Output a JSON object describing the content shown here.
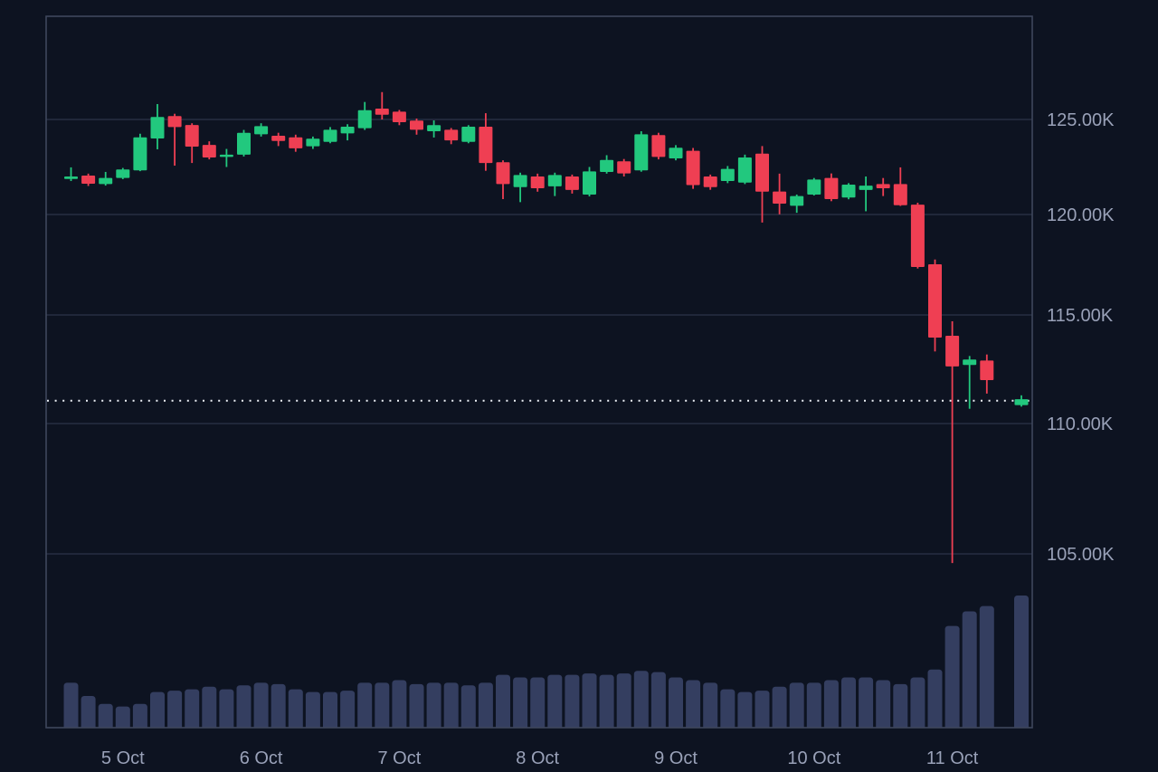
{
  "chart_data": {
    "type": "candlestick",
    "title": "Price chart with volume, 5-11 Oct, crash on 11 Oct",
    "legend_position": "none",
    "grid": true,
    "y_axis": {
      "side": "right",
      "tick_labels": [
        "125.00K",
        "120.00K",
        "115.00K",
        "110.00K",
        "105.00K"
      ],
      "tick_values": [
        125000,
        120000,
        115000,
        110000,
        105000
      ],
      "scale": "nonlinear"
    },
    "x_axis": {
      "tick_labels": [
        "5 Oct",
        "6 Oct",
        "7 Oct",
        "8 Oct",
        "9 Oct",
        "10 Oct",
        "11 Oct"
      ],
      "tick_slots": [
        3,
        11,
        19,
        27,
        35,
        43,
        51
      ],
      "candles_per_day": 8
    },
    "current_price_line": {
      "value_thousands": 111.05,
      "style": "dotted"
    },
    "price_range_thousands": {
      "high": 126.44,
      "low": 104.65
    },
    "candles_ohlc_thousands": [
      [
        121.87,
        122.48,
        121.76,
        122.0
      ],
      [
        122.05,
        122.15,
        121.5,
        121.62
      ],
      [
        121.6,
        122.24,
        121.52,
        121.92
      ],
      [
        121.92,
        122.45,
        121.86,
        122.37
      ],
      [
        122.32,
        124.25,
        122.28,
        124.06
      ],
      [
        124.0,
        125.81,
        123.43,
        125.13
      ],
      [
        125.18,
        125.3,
        122.57,
        124.6
      ],
      [
        124.71,
        124.8,
        122.71,
        123.57
      ],
      [
        123.66,
        123.85,
        122.9,
        123.0
      ],
      [
        123.05,
        123.45,
        122.5,
        123.15
      ],
      [
        123.15,
        124.45,
        123.05,
        124.3
      ],
      [
        124.22,
        124.8,
        124.1,
        124.65
      ],
      [
        124.14,
        124.3,
        123.6,
        123.87
      ],
      [
        124.06,
        124.2,
        123.3,
        123.48
      ],
      [
        123.59,
        124.1,
        123.45,
        123.99
      ],
      [
        123.82,
        124.6,
        123.75,
        124.46
      ],
      [
        124.27,
        124.75,
        123.9,
        124.62
      ],
      [
        124.54,
        125.92,
        124.45,
        125.49
      ],
      [
        125.57,
        126.44,
        125.0,
        125.25
      ],
      [
        125.41,
        125.5,
        124.7,
        124.86
      ],
      [
        124.94,
        125.05,
        124.2,
        124.46
      ],
      [
        124.38,
        124.95,
        124.05,
        124.7
      ],
      [
        124.46,
        124.55,
        123.7,
        123.9
      ],
      [
        123.82,
        124.7,
        123.75,
        124.62
      ],
      [
        124.62,
        125.33,
        122.3,
        122.71
      ],
      [
        122.75,
        122.85,
        120.81,
        121.6
      ],
      [
        121.44,
        122.2,
        120.65,
        122.08
      ],
      [
        122.0,
        122.15,
        121.2,
        121.38
      ],
      [
        121.48,
        122.2,
        120.97,
        122.08
      ],
      [
        122.0,
        122.1,
        121.1,
        121.29
      ],
      [
        121.05,
        122.5,
        120.95,
        122.27
      ],
      [
        122.24,
        123.12,
        122.15,
        122.87
      ],
      [
        122.8,
        122.92,
        122.0,
        122.16
      ],
      [
        122.32,
        124.38,
        122.25,
        124.22
      ],
      [
        124.18,
        124.3,
        122.9,
        123.03
      ],
      [
        122.95,
        123.65,
        122.85,
        123.51
      ],
      [
        123.35,
        123.5,
        121.35,
        121.55
      ],
      [
        122.0,
        122.1,
        121.3,
        121.44
      ],
      [
        121.76,
        122.55,
        121.65,
        122.4
      ],
      [
        121.68,
        123.15,
        121.6,
        123.0
      ],
      [
        123.2,
        123.6,
        119.6,
        121.2
      ],
      [
        121.21,
        122.15,
        120.01,
        120.57
      ],
      [
        120.46,
        121.05,
        120.09,
        120.97
      ],
      [
        121.05,
        121.92,
        121.0,
        121.84
      ],
      [
        121.92,
        122.16,
        120.7,
        120.81
      ],
      [
        120.89,
        121.65,
        120.8,
        121.57
      ],
      [
        121.29,
        122.0,
        120.17,
        121.52
      ],
      [
        121.6,
        121.92,
        120.97,
        121.38
      ],
      [
        121.6,
        122.48,
        120.45,
        120.49
      ],
      [
        120.52,
        120.62,
        117.31,
        117.39
      ],
      [
        117.52,
        117.76,
        113.32,
        113.96
      ],
      [
        114.04,
        114.71,
        104.65,
        112.63
      ],
      [
        112.7,
        113.11,
        110.68,
        112.95
      ],
      [
        112.9,
        113.18,
        111.38,
        112.0
      ],
      null,
      [
        110.85,
        111.3,
        110.78,
        111.12
      ]
    ],
    "volume_relative_percent": [
      34,
      24,
      18,
      16,
      18,
      27,
      28,
      29,
      31,
      29,
      32,
      34,
      33,
      29,
      27,
      27,
      28,
      34,
      34,
      36,
      33,
      34,
      34,
      32,
      34,
      40,
      38,
      38,
      40,
      40,
      41,
      40,
      41,
      43,
      42,
      38,
      36,
      34,
      29,
      27,
      28,
      31,
      34,
      34,
      36,
      38,
      38,
      36,
      33,
      38,
      44,
      77,
      88,
      92,
      0,
      100
    ]
  },
  "colors": {
    "background": "#0d1321",
    "grid_line": "#272e42",
    "frame_border": "#3e465c",
    "axis_text": "#99a1b8",
    "candle_up": "#22c87e",
    "candle_down": "#ef3f53",
    "volume_bar": "#343e60",
    "current_price_dots": "#eef1f7"
  },
  "icons": {}
}
